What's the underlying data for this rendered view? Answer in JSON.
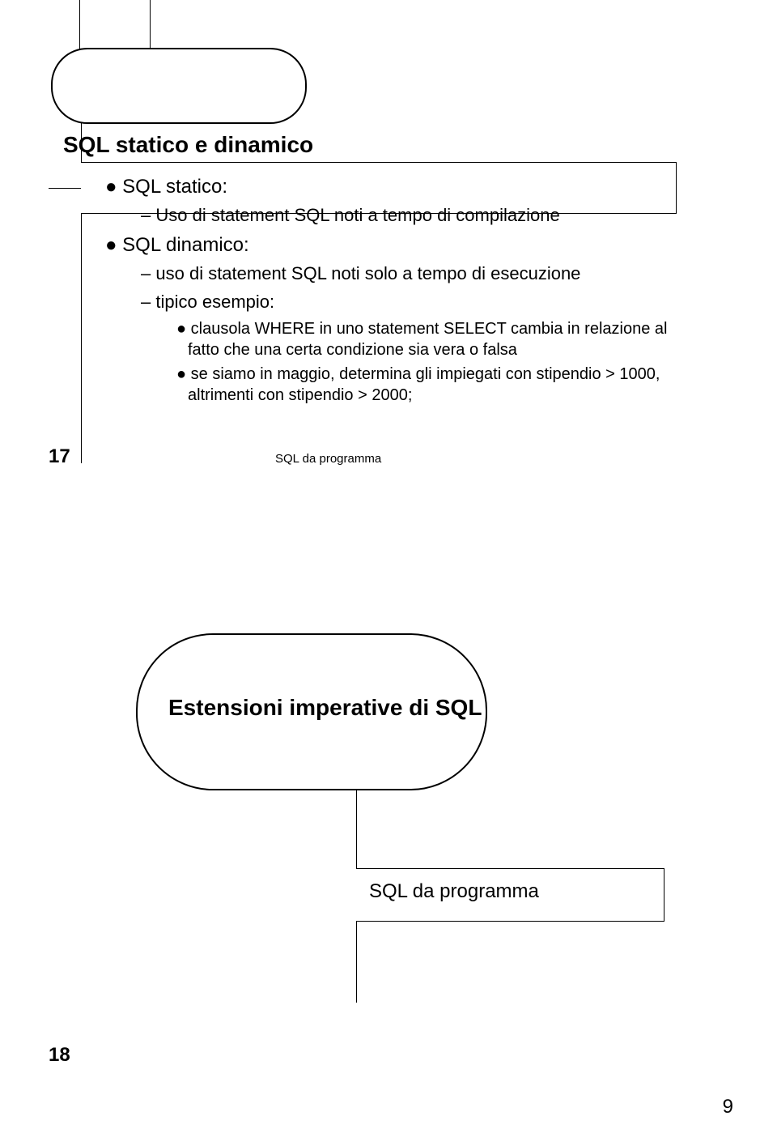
{
  "colors": {
    "background": "#ffffff",
    "text": "#000000",
    "border": "#000000"
  },
  "typography": {
    "font_family": "Arial",
    "title_fontsize_pt": 21,
    "body_fontsize_pt": 18,
    "sub_fontsize_pt": 17,
    "subsub_fontsize_pt": 15,
    "slidenum_fontsize_pt": 18,
    "footer_fontsize_pt": 11,
    "pagenum_fontsize_pt": 18
  },
  "slide17": {
    "number": "17",
    "title": "SQL statico e dinamico",
    "footer": "SQL da programma",
    "bullets": [
      {
        "level": 1,
        "marker": "●",
        "text": "SQL statico:"
      },
      {
        "level": 2,
        "marker": "–",
        "text": "Uso di statement SQL noti a tempo di compilazione"
      },
      {
        "level": 1,
        "marker": "●",
        "text": "SQL dinamico:"
      },
      {
        "level": 2,
        "marker": "–",
        "text": "uso di statement SQL noti solo a tempo di esecuzione"
      },
      {
        "level": 2,
        "marker": "–",
        "text": "tipico esempio:"
      },
      {
        "level": 3,
        "marker": "●",
        "text": "clausola WHERE in uno statement SELECT cambia in relazione al fatto che una certa condizione sia vera o falsa"
      },
      {
        "level": 3,
        "marker": "●",
        "text": "se siamo in maggio, determina gli impiegati con stipendio > 1000, altrimenti con stipendio > 2000;"
      }
    ]
  },
  "slide18": {
    "number": "18",
    "title": "Estensioni imperative di SQL",
    "subtitle": "SQL da programma"
  },
  "page_number": "9"
}
